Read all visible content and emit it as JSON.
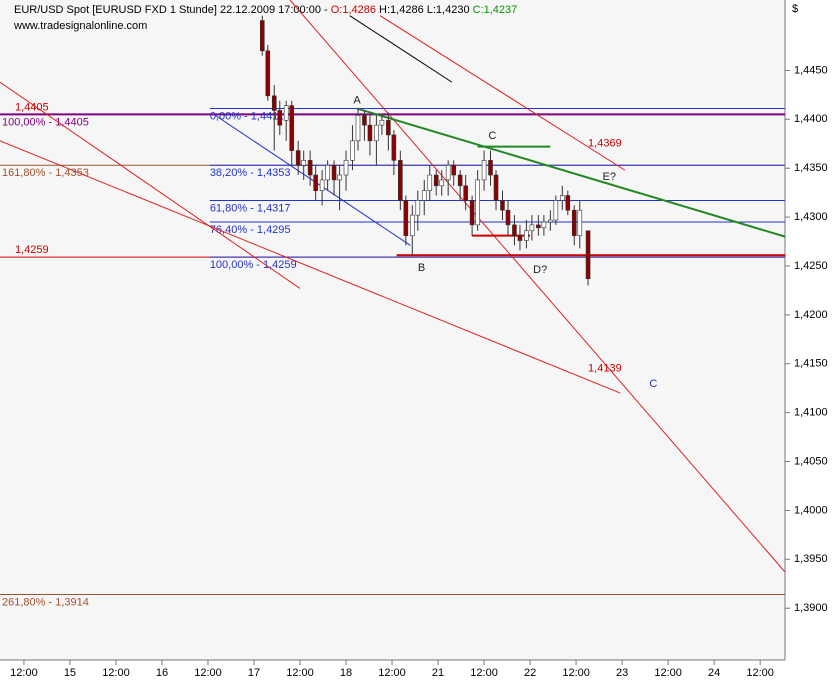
{
  "chart_data": {
    "type": "candlestick",
    "title_parts": [
      {
        "text": "EUR/USD Spot [EURUSD FXD  1 Stunde] 22.12.2009 17:00:00 - ",
        "color": "#000000"
      },
      {
        "text": "O:1,4286",
        "color": "#cc0000"
      },
      {
        "text": " H:1,4286 L:1,4230 ",
        "color": "#000000"
      },
      {
        "text": "C:1,4237",
        "color": "#009900"
      }
    ],
    "subtitle": "www.tradesignalonline.com",
    "y_unit": "$",
    "xlim": [
      -0.76,
      7.77
    ],
    "ylim": [
      1.3847,
      1.4522
    ],
    "xticks": [
      {
        "value": -0.5,
        "label": "12:00"
      },
      {
        "value": 0,
        "label": "15"
      },
      {
        "value": 0.5,
        "label": "12:00"
      },
      {
        "value": 1,
        "label": "16"
      },
      {
        "value": 1.5,
        "label": "12:00"
      },
      {
        "value": 2,
        "label": "17"
      },
      {
        "value": 2.5,
        "label": "12:00"
      },
      {
        "value": 3,
        "label": "18"
      },
      {
        "value": 3.5,
        "label": "12:00"
      },
      {
        "value": 4,
        "label": "21"
      },
      {
        "value": 4.5,
        "label": "12:00"
      },
      {
        "value": 5,
        "label": "22"
      },
      {
        "value": 5.5,
        "label": "12:00"
      },
      {
        "value": 6,
        "label": "23"
      },
      {
        "value": 6.5,
        "label": "12:00"
      },
      {
        "value": 7,
        "label": "24"
      },
      {
        "value": 7.5,
        "label": "12:00"
      }
    ],
    "yticks": [
      {
        "value": 1.445,
        "label": "1,4450"
      },
      {
        "value": 1.44,
        "label": "1,4400"
      },
      {
        "value": 1.435,
        "label": "1,4350"
      },
      {
        "value": 1.43,
        "label": "1,4300"
      },
      {
        "value": 1.425,
        "label": "1,4250"
      },
      {
        "value": 1.42,
        "label": "1,4200"
      },
      {
        "value": 1.415,
        "label": "1,4150"
      },
      {
        "value": 1.41,
        "label": "1,4100"
      },
      {
        "value": 1.405,
        "label": "1,4050"
      },
      {
        "value": 1.4,
        "label": "1,4000"
      },
      {
        "value": 1.395,
        "label": "1,3950"
      },
      {
        "value": 1.39,
        "label": "1,3900"
      }
    ],
    "up_color": "#ffffff",
    "down_color": "#8b0000",
    "candles": {
      "x": [
        2.09,
        2.15,
        2.22,
        2.28,
        2.35,
        2.41,
        2.48,
        2.54,
        2.61,
        2.67,
        2.74,
        2.8,
        2.87,
        2.93,
        3.0,
        3.07,
        3.13,
        3.2,
        3.26,
        3.33,
        3.39,
        3.46,
        3.52,
        3.59,
        3.65,
        3.72,
        3.78,
        3.85,
        3.91,
        3.98,
        4.04,
        4.11,
        4.17,
        4.24,
        4.3,
        4.37,
        4.43,
        4.5,
        4.57,
        4.63,
        4.7,
        4.76,
        4.83,
        4.89,
        4.96,
        5.02,
        5.09,
        5.15,
        5.22,
        5.28,
        5.35,
        5.41,
        5.48,
        5.54,
        5.63
      ],
      "open": [
        1.4501,
        1.447,
        1.4424,
        1.4409,
        1.4399,
        1.4414,
        1.4368,
        1.4353,
        1.4358,
        1.4343,
        1.4327,
        1.4338,
        1.4353,
        1.4338,
        1.4343,
        1.4358,
        1.4378,
        1.4404,
        1.4394,
        1.4378,
        1.4394,
        1.4399,
        1.4384,
        1.4358,
        1.4317,
        1.4281,
        1.4302,
        1.4317,
        1.4327,
        1.4343,
        1.4332,
        1.4338,
        1.4353,
        1.4343,
        1.4332,
        1.4317,
        1.4292,
        1.4338,
        1.4358,
        1.4343,
        1.4317,
        1.4307,
        1.4292,
        1.4281,
        1.4276,
        1.4286,
        1.4292,
        1.4289,
        1.4295,
        1.4297,
        1.4317,
        1.4322,
        1.4307,
        1.4281,
        1.4286
      ],
      "high": [
        1.4506,
        1.4476,
        1.4435,
        1.4419,
        1.4419,
        1.4419,
        1.4378,
        1.4368,
        1.4368,
        1.4353,
        1.4348,
        1.4358,
        1.4358,
        1.4353,
        1.4368,
        1.4394,
        1.4411,
        1.4409,
        1.4404,
        1.4404,
        1.4404,
        1.4407,
        1.4389,
        1.4368,
        1.4322,
        1.4312,
        1.4327,
        1.4338,
        1.4353,
        1.4348,
        1.4348,
        1.4358,
        1.4358,
        1.4348,
        1.4343,
        1.4322,
        1.4348,
        1.4368,
        1.4368,
        1.4348,
        1.4327,
        1.4317,
        1.4302,
        1.4292,
        1.4297,
        1.4302,
        1.4302,
        1.4302,
        1.4307,
        1.4322,
        1.4332,
        1.4327,
        1.4312,
        1.4317,
        1.4286
      ],
      "low": [
        1.4465,
        1.4419,
        1.4368,
        1.4384,
        1.4378,
        1.4353,
        1.4343,
        1.4338,
        1.4332,
        1.4317,
        1.4312,
        1.4327,
        1.4322,
        1.4307,
        1.4327,
        1.4348,
        1.4368,
        1.4378,
        1.4363,
        1.4353,
        1.4384,
        1.4368,
        1.4343,
        1.4307,
        1.4271,
        1.4261,
        1.4286,
        1.4302,
        1.4317,
        1.4322,
        1.4322,
        1.4322,
        1.4332,
        1.4317,
        1.4307,
        1.4281,
        1.4286,
        1.4327,
        1.4332,
        1.4307,
        1.4297,
        1.4281,
        1.4271,
        1.4266,
        1.4268,
        1.4276,
        1.4281,
        1.4281,
        1.4286,
        1.4292,
        1.4307,
        1.4302,
        1.4271,
        1.4268,
        1.423
      ],
      "close": [
        1.447,
        1.4424,
        1.4409,
        1.4394,
        1.4414,
        1.4368,
        1.4353,
        1.4358,
        1.4343,
        1.4327,
        1.4338,
        1.4353,
        1.4338,
        1.4343,
        1.4358,
        1.4378,
        1.4404,
        1.4394,
        1.4378,
        1.4394,
        1.4399,
        1.4384,
        1.4358,
        1.4317,
        1.4281,
        1.4302,
        1.4317,
        1.4327,
        1.4343,
        1.4332,
        1.4338,
        1.4353,
        1.4343,
        1.4332,
        1.4317,
        1.4292,
        1.4338,
        1.4358,
        1.4343,
        1.4317,
        1.4307,
        1.4292,
        1.4281,
        1.4276,
        1.4286,
        1.4292,
        1.4289,
        1.4295,
        1.4297,
        1.4317,
        1.4322,
        1.4307,
        1.4281,
        1.4307,
        1.4237
      ]
    },
    "levels": [
      {
        "value": 1.4405,
        "label": "1,4405",
        "color": "#cc0000",
        "label_position": "above"
      },
      {
        "value": 1.4405,
        "label": "100,00% - 1,4405",
        "color": "#800080",
        "label_position": "below"
      },
      {
        "value": 1.4353,
        "label": "161,80% - 1,4353",
        "color": "#a0522d",
        "label_position": "below"
      },
      {
        "value": 1.4259,
        "label": "1,4259",
        "color": "#cc0000",
        "label_position": "above"
      },
      {
        "value": 1.3914,
        "label": "261,80% - 1,3914",
        "color": "#a0522d",
        "label_position": "below"
      }
    ],
    "fib_start": 1.52,
    "fib_color": "#2233cc",
    "fib_levels": [
      {
        "value": 1.4411,
        "label": "0,00% - 1,4411"
      },
      {
        "value": 1.4353,
        "label": "38,20% - 1,4353"
      },
      {
        "value": 1.4317,
        "label": "61,80% - 1,4317"
      },
      {
        "value": 1.4295,
        "label": "76,40% - 1,4295"
      },
      {
        "value": 1.4259,
        "label": "100,00% - 1,4259"
      }
    ],
    "lines": [
      {
        "from": [
          -0.76,
          1.4438
        ],
        "to": [
          2.5,
          1.4227
        ],
        "color": "#dd2222",
        "width": 1
      },
      {
        "from": [
          -0.76,
          1.4378
        ],
        "to": [
          5.98,
          1.412
        ],
        "color": "#dd2222",
        "width": 1
      },
      {
        "from": [
          2.39,
          1.4522
        ],
        "to": [
          7.77,
          1.3937
        ],
        "color": "#dd2222",
        "width": 1
      },
      {
        "from": [
          3.37,
          1.4506
        ],
        "to": [
          6.03,
          1.4348
        ],
        "color": "#dd2222",
        "width": 1
      },
      {
        "from": [
          3.04,
          1.4506
        ],
        "to": [
          4.15,
          1.4438
        ],
        "color": "#000000",
        "width": 1
      },
      {
        "from": [
          1.58,
          1.4404
        ],
        "to": [
          3.7,
          1.4271
        ],
        "color": "#2233cc",
        "width": 1
      },
      {
        "from": [
          3.12,
          1.4411
        ],
        "to": [
          7.77,
          1.428
        ],
        "color": "#228822",
        "width": 2
      },
      {
        "from": [
          4.43,
          1.4372
        ],
        "to": [
          5.22,
          1.4372
        ],
        "color": "#228822",
        "width": 2
      },
      {
        "from": [
          3.55,
          1.4261
        ],
        "to": [
          7.77,
          1.4261
        ],
        "color": "#cc0000",
        "width": 2
      },
      {
        "from": [
          4.37,
          1.4281
        ],
        "to": [
          5.0,
          1.4281
        ],
        "color": "#cc0000",
        "width": 2
      }
    ],
    "annotations": [
      {
        "text": "A",
        "at": [
          3.12,
          1.4419
        ],
        "color": "#222222"
      },
      {
        "text": "B",
        "at": [
          3.82,
          1.4248
        ],
        "color": "#222222"
      },
      {
        "text": "C",
        "at": [
          4.59,
          1.4383
        ],
        "color": "#222222"
      },
      {
        "text": "D?",
        "at": [
          5.11,
          1.4246
        ],
        "color": "#222222"
      },
      {
        "text": "E?",
        "at": [
          5.86,
          1.4341
        ],
        "color": "#222222"
      },
      {
        "text": "C",
        "at": [
          6.34,
          1.4129
        ],
        "color": "#2233cc"
      }
    ],
    "price_labels": [
      {
        "value": 1.4369,
        "label": "1,4369",
        "x": 5.63,
        "color": "#cc0000"
      },
      {
        "value": 1.4139,
        "label": "1,4139",
        "x": 5.63,
        "color": "#cc0000"
      }
    ]
  }
}
